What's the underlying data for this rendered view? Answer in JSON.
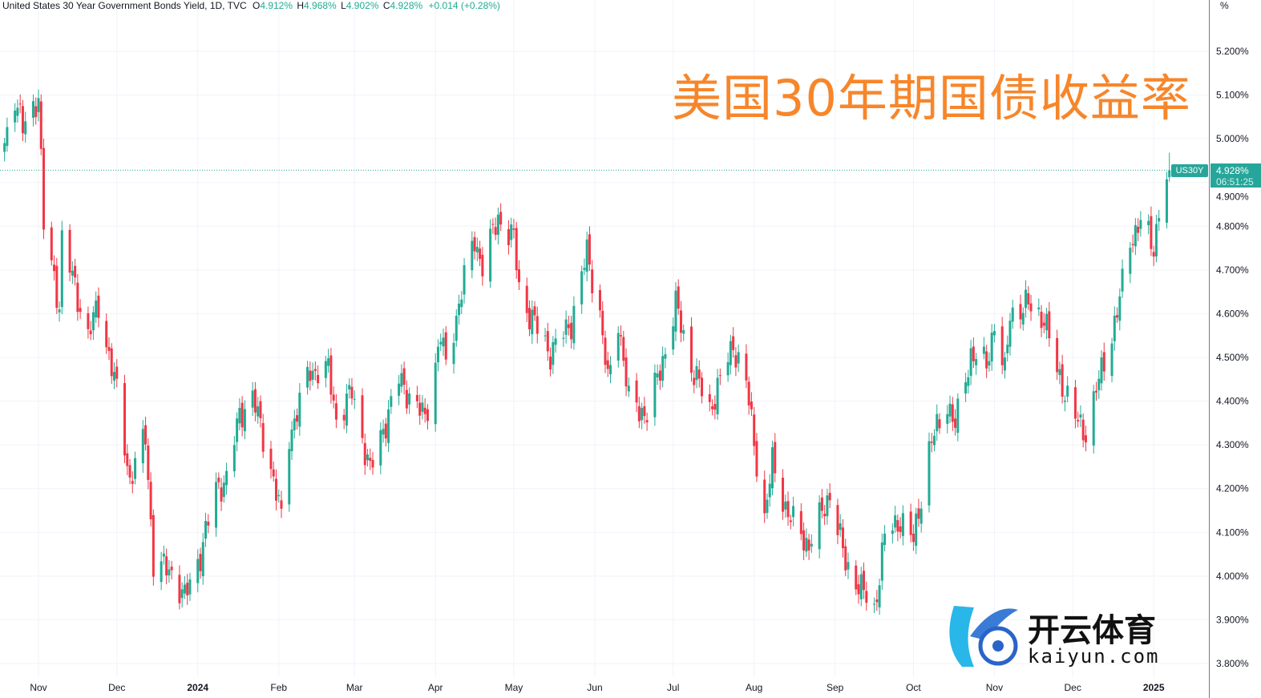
{
  "header": {
    "instrument": "United States 30 Year Government Bonds Yield, 1D, TVC",
    "open_label": "O",
    "open": "4.912%",
    "high_label": "H",
    "high": "4.968%",
    "low_label": "L",
    "low": "4.902%",
    "close_label": "C",
    "close": "4.928%",
    "change": "+0.014 (+0.28%)"
  },
  "overlay_title": "美国30年期国债收益率",
  "axis_unit": "%",
  "last_price": {
    "symbol": "US30Y",
    "value": "4.928%",
    "countdown": "06:51:25"
  },
  "watermark": {
    "cn": "开云体育",
    "en": "kaiyun.com"
  },
  "colors": {
    "up": "#22ab94",
    "down": "#f23645",
    "title": "#f7862a",
    "grid": "#f0f3fa",
    "last_price": "#26a69a"
  },
  "chart_data": {
    "type": "candlestick",
    "title": "",
    "ylim": [
      3.8,
      5.2
    ],
    "y_ticks": [
      "5.200%",
      "5.100%",
      "5.000%",
      "4.900%",
      "4.800%",
      "4.700%",
      "4.600%",
      "4.500%",
      "4.400%",
      "4.300%",
      "4.200%",
      "4.100%",
      "4.000%",
      "3.900%",
      "3.800%"
    ],
    "x_ticks": [
      {
        "label": "Nov",
        "date": "2023-11-01"
      },
      {
        "label": "Dec",
        "date": "2023-12-01"
      },
      {
        "label": "2024",
        "date": "2024-01-01",
        "bold": true
      },
      {
        "label": "Feb",
        "date": "2024-02-01"
      },
      {
        "label": "Mar",
        "date": "2024-03-01"
      },
      {
        "label": "Apr",
        "date": "2024-04-01"
      },
      {
        "label": "May",
        "date": "2024-05-01"
      },
      {
        "label": "Jun",
        "date": "2024-06-01"
      },
      {
        "label": "Jul",
        "date": "2024-07-01"
      },
      {
        "label": "Aug",
        "date": "2024-08-01"
      },
      {
        "label": "Sep",
        "date": "2024-09-01"
      },
      {
        "label": "Oct",
        "date": "2024-10-01"
      },
      {
        "label": "Nov",
        "date": "2024-11-01"
      },
      {
        "label": "Dec",
        "date": "2024-12-01"
      },
      {
        "label": "2025",
        "date": "2025-01-01",
        "bold": true
      }
    ],
    "grid": true,
    "last_close": 4.928,
    "approx_close_path": [
      [
        "2023-10-19",
        4.99
      ],
      [
        "2023-10-23",
        5.1
      ],
      [
        "2023-10-26",
        5.02
      ],
      [
        "2023-11-01",
        5.1
      ],
      [
        "2023-11-03",
        4.8
      ],
      [
        "2023-11-09",
        4.62
      ],
      [
        "2023-11-10",
        4.77
      ],
      [
        "2023-11-20",
        4.55
      ],
      [
        "2023-11-24",
        4.62
      ],
      [
        "2023-12-01",
        4.42
      ],
      [
        "2023-12-06",
        4.22
      ],
      [
        "2023-12-12",
        4.32
      ],
      [
        "2023-12-15",
        4.03
      ],
      [
        "2023-12-22",
        4.01
      ],
      [
        "2023-12-27",
        3.95
      ],
      [
        "2024-01-02",
        4.05
      ],
      [
        "2024-01-08",
        4.2
      ],
      [
        "2024-01-12",
        4.22
      ],
      [
        "2024-01-17",
        4.37
      ],
      [
        "2024-01-22",
        4.41
      ],
      [
        "2024-01-29",
        4.25
      ],
      [
        "2024-02-02",
        4.13
      ],
      [
        "2024-02-05",
        4.32
      ],
      [
        "2024-02-13",
        4.47
      ],
      [
        "2024-02-20",
        4.47
      ],
      [
        "2024-02-23",
        4.36
      ],
      [
        "2024-02-29",
        4.42
      ],
      [
        "2024-03-07",
        4.24
      ],
      [
        "2024-03-18",
        4.45
      ],
      [
        "2024-03-28",
        4.36
      ],
      [
        "2024-04-03",
        4.55
      ],
      [
        "2024-04-05",
        4.48
      ],
      [
        "2024-04-12",
        4.68
      ],
      [
        "2024-04-16",
        4.77
      ],
      [
        "2024-04-19",
        4.71
      ],
      [
        "2024-04-25",
        4.82
      ],
      [
        "2024-05-01",
        4.77
      ],
      [
        "2024-05-03",
        4.66
      ],
      [
        "2024-05-06",
        4.61
      ],
      [
        "2024-05-15",
        4.51
      ],
      [
        "2024-05-23",
        4.58
      ],
      [
        "2024-05-29",
        4.74
      ],
      [
        "2024-06-03",
        4.6
      ],
      [
        "2024-06-06",
        4.44
      ],
      [
        "2024-06-10",
        4.59
      ],
      [
        "2024-06-14",
        4.4
      ],
      [
        "2024-06-21",
        4.37
      ],
      [
        "2024-06-26",
        4.47
      ],
      [
        "2024-07-02",
        4.62
      ],
      [
        "2024-07-08",
        4.48
      ],
      [
        "2024-07-15",
        4.38
      ],
      [
        "2024-07-24",
        4.53
      ],
      [
        "2024-07-29",
        4.44
      ],
      [
        "2024-08-05",
        4.13
      ],
      [
        "2024-08-08",
        4.26
      ],
      [
        "2024-08-14",
        4.14
      ],
      [
        "2024-08-22",
        4.07
      ],
      [
        "2024-08-30",
        4.19
      ],
      [
        "2024-09-05",
        4.03
      ],
      [
        "2024-09-11",
        3.97
      ],
      [
        "2024-09-16",
        3.92
      ],
      [
        "2024-09-20",
        4.09
      ],
      [
        "2024-09-26",
        4.13
      ],
      [
        "2024-10-01",
        4.08
      ],
      [
        "2024-10-07",
        4.29
      ],
      [
        "2024-10-14",
        4.4
      ],
      [
        "2024-10-17",
        4.34
      ],
      [
        "2024-10-23",
        4.51
      ],
      [
        "2024-10-29",
        4.48
      ],
      [
        "2024-11-01",
        4.58
      ],
      [
        "2024-11-05",
        4.46
      ],
      [
        "2024-11-07",
        4.6
      ],
      [
        "2024-11-14",
        4.62
      ],
      [
        "2024-11-20",
        4.59
      ],
      [
        "2024-11-25",
        4.47
      ],
      [
        "2024-12-02",
        4.36
      ],
      [
        "2024-12-06",
        4.33
      ],
      [
        "2024-12-12",
        4.47
      ],
      [
        "2024-12-18",
        4.6
      ],
      [
        "2024-12-23",
        4.77
      ],
      [
        "2024-12-27",
        4.81
      ],
      [
        "2025-01-01",
        4.75
      ],
      [
        "2025-01-03",
        4.84
      ],
      [
        "2025-01-07",
        4.928
      ]
    ]
  }
}
